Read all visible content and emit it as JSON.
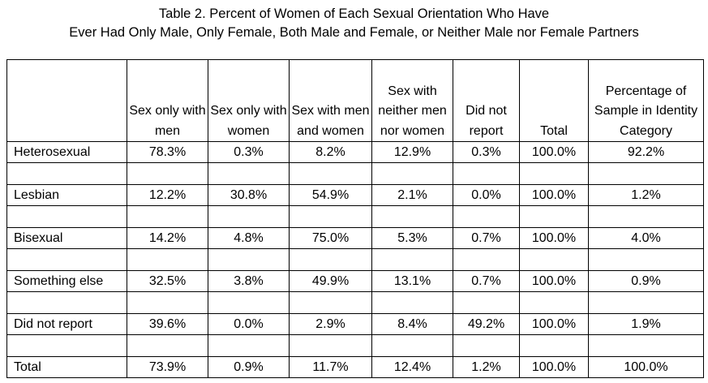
{
  "caption": {
    "line1": "Table 2. Percent of Women of Each Sexual Orientation Who Have",
    "line2": "Ever Had Only Male, Only Female, Both Male and Female, or Neither Male nor Female Partners"
  },
  "table": {
    "columns": [
      "",
      "Sex only with men",
      "Sex only with women",
      "Sex with men and women",
      "Sex with neither men nor women",
      "Did not report",
      "Total",
      "Percentage of Sample in Identity Category"
    ],
    "rows": [
      {
        "label": "Heterosexual",
        "values": [
          "78.3%",
          "0.3%",
          "8.2%",
          "12.9%",
          "0.3%",
          "100.0%",
          "92.2%"
        ]
      },
      {
        "label": "Lesbian",
        "values": [
          "12.2%",
          "30.8%",
          "54.9%",
          "2.1%",
          "0.0%",
          "100.0%",
          "1.2%"
        ]
      },
      {
        "label": "Bisexual",
        "values": [
          "14.2%",
          "4.8%",
          "75.0%",
          "5.3%",
          "0.7%",
          "100.0%",
          "4.0%"
        ]
      },
      {
        "label": "Something else",
        "values": [
          "32.5%",
          "3.8%",
          "49.9%",
          "13.1%",
          "0.7%",
          "100.0%",
          "0.9%"
        ]
      },
      {
        "label": "Did not report",
        "values": [
          "39.6%",
          "0.0%",
          "2.9%",
          "8.4%",
          "49.2%",
          "100.0%",
          "1.9%"
        ]
      },
      {
        "label": "Total",
        "values": [
          "73.9%",
          "0.9%",
          "11.7%",
          "12.4%",
          "1.2%",
          "100.0%",
          "100.0%"
        ]
      }
    ]
  }
}
